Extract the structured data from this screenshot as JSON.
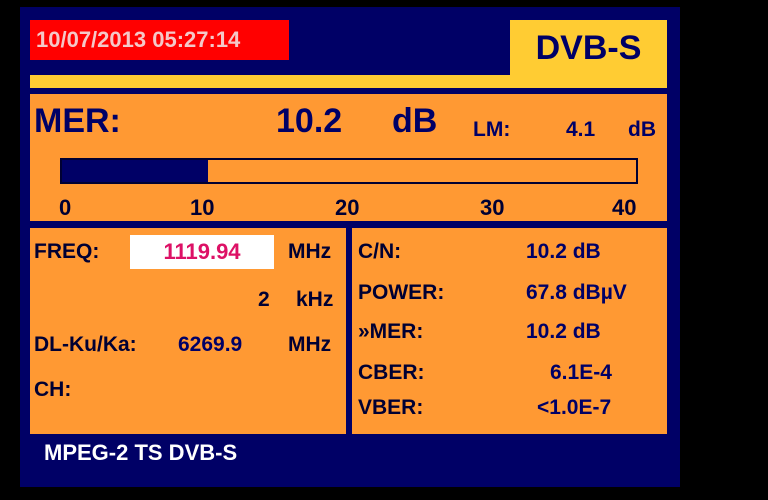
{
  "header": {
    "datetime": "10/07/2013 05:27:14",
    "standard": "DVB-S"
  },
  "mer": {
    "label": "MER:",
    "value": "10.2",
    "unit": "dB",
    "lm_label": "LM:",
    "lm_value": "4.1",
    "lm_unit": "dB",
    "bar": {
      "value": 10.2,
      "min": 0,
      "max": 40,
      "ticks": [
        "0",
        "10",
        "20",
        "30",
        "40"
      ]
    }
  },
  "tuning": {
    "freq_label": "FREQ:",
    "freq_value": "1119.94",
    "freq_unit": "MHz",
    "offset_value": "2",
    "offset_unit": "kHz",
    "dl_label": "DL-Ku/Ka:",
    "dl_value": "6269.9",
    "dl_unit": "MHz",
    "ch_label": "CH:"
  },
  "measurements": [
    {
      "label": "C/N:",
      "value": "10.2 dB"
    },
    {
      "label": "POWER:",
      "value": "67.8 dBµV"
    },
    {
      "label": "»MER:",
      "value": "10.2 dB"
    },
    {
      "label": "CBER:",
      "value": "6.1E-4"
    },
    {
      "label": "VBER:",
      "value": "<1.0E-7"
    }
  ],
  "footer": {
    "stream": "MPEG-2 TS DVB-S"
  },
  "colors": {
    "background": "#000066",
    "panel": "#ff9933",
    "accent": "#ffcc33",
    "datetime_bg": "#ff0000",
    "freq_text": "#dd1166"
  }
}
